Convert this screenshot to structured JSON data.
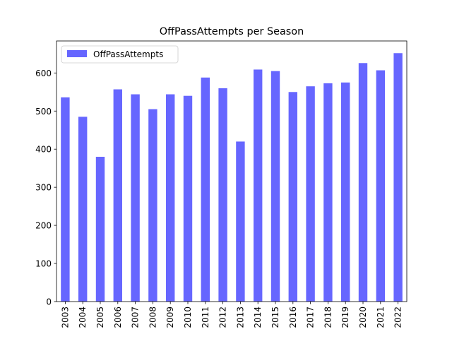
{
  "chart_data": {
    "type": "bar",
    "title": "OffPassAttempts per Season",
    "xlabel": "",
    "ylabel": "",
    "categories": [
      "2003",
      "2004",
      "2005",
      "2006",
      "2007",
      "2008",
      "2009",
      "2010",
      "2011",
      "2012",
      "2013",
      "2014",
      "2015",
      "2016",
      "2017",
      "2018",
      "2019",
      "2020",
      "2021",
      "2022"
    ],
    "series": [
      {
        "name": "OffPassAttempts",
        "color": "#6666ff",
        "values": [
          536,
          485,
          380,
          557,
          544,
          505,
          544,
          540,
          588,
          560,
          420,
          609,
          605,
          550,
          565,
          573,
          575,
          626,
          607,
          652
        ]
      }
    ],
    "ylim": [
      0,
      684
    ],
    "yticks": [
      0,
      100,
      200,
      300,
      400,
      500,
      600
    ],
    "grid": false,
    "legend_position": "top-left"
  }
}
